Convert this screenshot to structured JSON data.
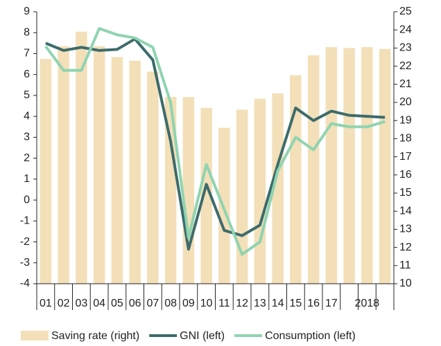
{
  "chart_data": {
    "type": "bar-line",
    "categories": [
      "01",
      "02",
      "03",
      "04",
      "05",
      "06",
      "07",
      "08",
      "09",
      "10",
      "11",
      "12",
      "13",
      "14",
      "15",
      "16",
      "17",
      null,
      "2018",
      null
    ],
    "series": [
      {
        "name": "Saving rate (right)",
        "type": "bar",
        "axis": "y2",
        "color": "#f3dfb8",
        "values": [
          22.4,
          23.1,
          23.9,
          23.1,
          22.5,
          22.3,
          21.7,
          20.3,
          20.3,
          19.7,
          18.6,
          19.6,
          20.2,
          20.5,
          21.5,
          22.6,
          23.05,
          23,
          23.05,
          22.95
        ]
      },
      {
        "name": "GNI (left)",
        "type": "line",
        "axis": "y",
        "color": "#3d6b6b",
        "values": [
          7.5,
          7.15,
          7.3,
          7.15,
          7.2,
          7.7,
          6.7,
          2.8,
          -2.35,
          0.75,
          -1.45,
          -1.7,
          -1.2,
          1.7,
          4.4,
          3.8,
          4.25,
          4.05,
          4.0,
          3.95
        ]
      },
      {
        "name": "Consumption (left)",
        "type": "line",
        "axis": "y",
        "color": "#8fd4b0",
        "values": [
          7.35,
          6.2,
          6.2,
          8.2,
          7.9,
          7.75,
          7.3,
          4.65,
          -1.8,
          1.7,
          -0.45,
          -2.6,
          -2.0,
          1.4,
          3.0,
          2.4,
          3.65,
          3.5,
          3.5,
          3.75
        ]
      }
    ],
    "ylim": [
      -4,
      9
    ],
    "yticks": [
      -4,
      -3,
      -2,
      -1,
      0,
      1,
      2,
      3,
      4,
      5,
      6,
      7,
      8,
      9
    ],
    "y2lim": [
      10,
      25
    ],
    "y2ticks": [
      10,
      11,
      12,
      13,
      14,
      15,
      16,
      17,
      18,
      19,
      20,
      21,
      22,
      23,
      24,
      25
    ]
  }
}
